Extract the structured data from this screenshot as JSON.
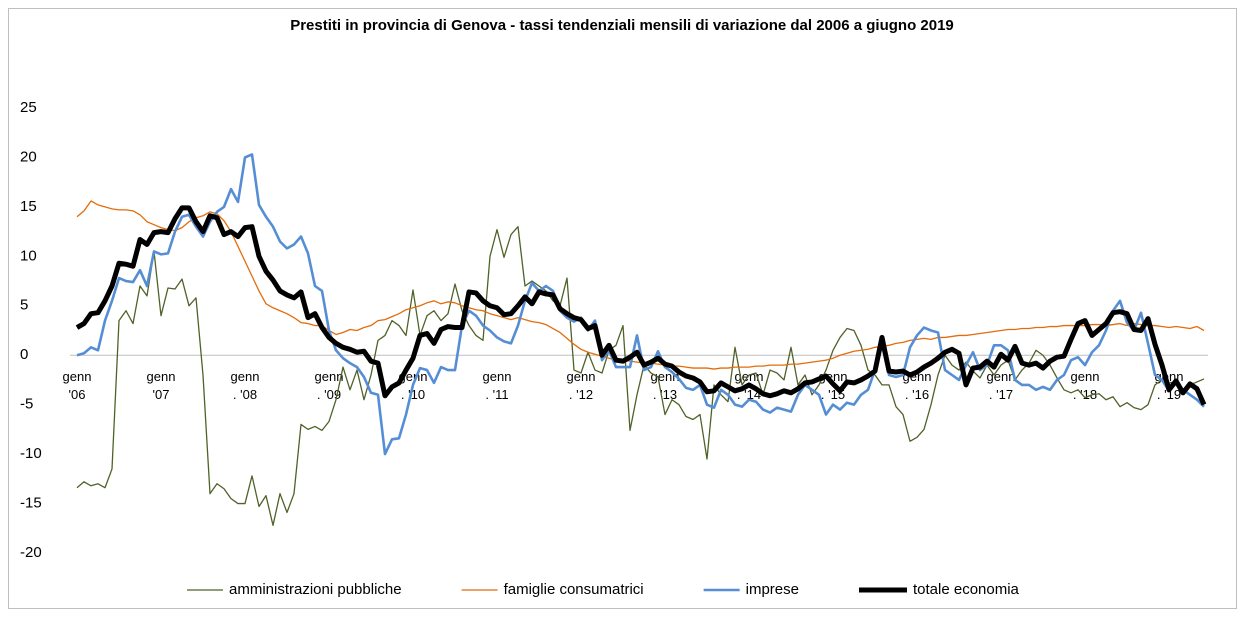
{
  "chart_data": {
    "type": "line",
    "title": "Prestiti in provincia di Genova - tassi tendenziali mensili di variazione  dal 2006 a giugno 2019",
    "categories": [
      "genn\n'06",
      null,
      null,
      null,
      null,
      null,
      null,
      null,
      null,
      null,
      null,
      null,
      "genn\n'07",
      null,
      null,
      null,
      null,
      null,
      null,
      null,
      null,
      null,
      null,
      null,
      "genn\n. '08",
      null,
      null,
      null,
      null,
      null,
      null,
      null,
      null,
      null,
      null,
      null,
      "genn\n. '09",
      null,
      null,
      null,
      null,
      null,
      null,
      null,
      null,
      null,
      null,
      null,
      "genn\n. '10",
      null,
      null,
      null,
      null,
      null,
      null,
      null,
      null,
      null,
      null,
      null,
      "genn\n. '11",
      null,
      null,
      null,
      null,
      null,
      null,
      null,
      null,
      null,
      null,
      null,
      "genn\n. '12",
      null,
      null,
      null,
      null,
      null,
      null,
      null,
      null,
      null,
      null,
      null,
      "genn\n. '13",
      null,
      null,
      null,
      null,
      null,
      null,
      null,
      null,
      null,
      null,
      null,
      "genn\n. '14",
      null,
      null,
      null,
      null,
      null,
      null,
      null,
      null,
      null,
      null,
      null,
      "genn\n. '15",
      null,
      null,
      null,
      null,
      null,
      null,
      null,
      null,
      null,
      null,
      null,
      "genn\n. '16",
      null,
      null,
      null,
      null,
      null,
      null,
      null,
      null,
      null,
      null,
      null,
      "genn\n. '17",
      null,
      null,
      null,
      null,
      null,
      null,
      null,
      null,
      null,
      null,
      null,
      "genn\n. '18",
      null,
      null,
      null,
      null,
      null,
      null,
      null,
      null,
      null,
      null,
      null,
      "genn\n. '19",
      null,
      null,
      null,
      null,
      null
    ],
    "ylim": [
      -20,
      25
    ],
    "yticks": [
      -20,
      -15,
      -10,
      -5,
      0,
      5,
      10,
      15,
      20,
      25
    ],
    "grid": false,
    "legend": "bottom",
    "series": [
      {
        "name": "amministrazioni pubbliche",
        "color": "#4f6228",
        "width": 1.3,
        "values": [
          -13.4,
          -12.8,
          -13.2,
          -13,
          -13.4,
          -11.5,
          3.5,
          4.5,
          3.2,
          7,
          6,
          10.5,
          4,
          6.8,
          6.7,
          7.7,
          5,
          5.8,
          -2,
          -14,
          -13,
          -13.5,
          -14.5,
          -15,
          -15,
          -12.2,
          -15.3,
          -14.2,
          -17.2,
          -14,
          -15.9,
          -14,
          -7,
          -7.5,
          -7.2,
          -7.6,
          -6.7,
          -4.5,
          -1.2,
          -3.5,
          -1.5,
          -4.5,
          -2,
          1.5,
          2,
          3.5,
          3,
          2,
          6.6,
          2,
          4,
          4.5,
          3.5,
          4.2,
          7.2,
          4.5,
          3,
          2,
          1.5,
          10,
          12.7,
          9.9,
          12.2,
          13,
          7,
          7.5,
          7,
          6.5,
          5.5,
          5,
          7.8,
          -1.5,
          -1.8,
          0.3,
          -1.5,
          -1.8,
          0.5,
          1,
          3,
          -7.6,
          -4,
          -1,
          -1.8,
          -2.2,
          -6,
          -4.5,
          -5,
          -6.2,
          -6.5,
          -6,
          -10.5,
          -3,
          -4,
          -4.7,
          0.8,
          -3,
          -2,
          -1.8,
          -4,
          -1.5,
          -1.8,
          -2.5,
          0.8,
          -3,
          -2,
          -4,
          -3,
          -1.5,
          0.5,
          1.8,
          2.7,
          2.5,
          1,
          -1.5,
          -2,
          -3,
          -3,
          -5.2,
          -6,
          -8.7,
          -8.3,
          -7.5,
          -5,
          -2,
          0,
          -1,
          -1.5,
          -0.7,
          -1.6,
          -2.3,
          -1,
          -2,
          -1,
          -0.5,
          -2.5,
          -1.5,
          -0.8,
          0.5,
          0,
          -1,
          -2.3,
          -3.5,
          -3.8,
          -3.5,
          -4.3,
          -4,
          -3.9,
          -4.5,
          -4.2,
          -5.2,
          -4.8,
          -5.3,
          -5.5,
          -5,
          -3,
          -2.5,
          -2.8,
          -2.7,
          -3.5,
          -3,
          -2.7,
          -2.4
        ]
      },
      {
        "name": "famiglie consumatrici",
        "color": "#e46c0a",
        "width": 1.3,
        "values": [
          14,
          14.6,
          15.6,
          15.2,
          15,
          14.8,
          14.7,
          14.7,
          14.6,
          14.2,
          13.5,
          13.2,
          12.9,
          12.7,
          12.6,
          12.9,
          13.5,
          13.9,
          14.1,
          14.5,
          14.3,
          13.6,
          12.5,
          11,
          9.5,
          8,
          6.5,
          5.2,
          4.8,
          4.5,
          4.2,
          3.8,
          3.3,
          3.2,
          3,
          3,
          2.5,
          2.1,
          2.3,
          2.6,
          2.5,
          2.8,
          3,
          3.5,
          3.6,
          3.9,
          4.2,
          4.6,
          4.8,
          5,
          5.3,
          5.5,
          5.2,
          5.4,
          5.3,
          5,
          4.8,
          4.6,
          4.5,
          4.2,
          4,
          3.8,
          3.6,
          3.8,
          3.6,
          3.4,
          3.3,
          3.1,
          2.7,
          2.3,
          1.7,
          1.1,
          0.6,
          0.3,
          0.1,
          -0.1,
          -0.3,
          -0.5,
          -0.5,
          -0.6,
          -0.7,
          -0.8,
          -0.8,
          -0.9,
          -1,
          -1.1,
          -1.1,
          -1.2,
          -1.3,
          -1.3,
          -1.3,
          -1.4,
          -1.3,
          -1.3,
          -1.2,
          -1.2,
          -1.2,
          -1.1,
          -1.1,
          -1,
          -1,
          -1,
          -0.9,
          -0.9,
          -0.8,
          -0.7,
          -0.6,
          -0.5,
          -0.3,
          0,
          0.2,
          0.4,
          0.5,
          0.6,
          0.8,
          0.9,
          1,
          1.2,
          1.3,
          1.5,
          1.6,
          1.7,
          1.6,
          1.8,
          1.8,
          1.9,
          2,
          2,
          2.1,
          2.2,
          2.3,
          2.4,
          2.5,
          2.6,
          2.6,
          2.7,
          2.7,
          2.8,
          2.8,
          2.9,
          2.9,
          3,
          3,
          3,
          3,
          3.1,
          3.1,
          3,
          3.1,
          3.2,
          3,
          3.2,
          3.1,
          3,
          3,
          2.9,
          2.8,
          2.9,
          2.8,
          2.7,
          2.9,
          2.5
        ]
      },
      {
        "name": "imprese",
        "color": "#558ed5",
        "width": 2.6,
        "values": [
          0,
          0.2,
          0.8,
          0.5,
          3.5,
          5.5,
          7.8,
          7.5,
          7.4,
          8.6,
          7,
          10.5,
          10.2,
          10.3,
          12.5,
          14,
          14.2,
          13,
          12,
          13.5,
          14.5,
          15,
          16.8,
          15.5,
          20,
          20.3,
          15.2,
          14,
          13,
          11.5,
          10.8,
          11.2,
          12,
          10.3,
          7,
          6.5,
          2.5,
          0.5,
          -0.3,
          -0.8,
          -1.2,
          -2.2,
          -3.8,
          -4,
          -10,
          -8.5,
          -8.4,
          -6,
          -3,
          -1.3,
          -1.5,
          -2.8,
          -1.2,
          -1.5,
          -1.5,
          3,
          4.5,
          4,
          3,
          2.5,
          1.8,
          1.4,
          1.2,
          3,
          5.5,
          7.3,
          6.5,
          7,
          6.5,
          4.5,
          3.8,
          3.4,
          3.8,
          2.5,
          3.5,
          -0.5,
          0.5,
          -1.2,
          -1.2,
          -1.2,
          2,
          -1.5,
          -1.2,
          0.4,
          -1.2,
          -1.7,
          -2.4,
          -3.3,
          -3.5,
          -3,
          -5,
          -5.3,
          -3.5,
          -4,
          -5,
          -5.2,
          -4.5,
          -4.7,
          -5.5,
          -5.8,
          -5.3,
          -5.5,
          -5.7,
          -4,
          -3,
          -3.5,
          -4,
          -6,
          -5,
          -5.5,
          -4.8,
          -5,
          -4,
          -3.5,
          -1.5,
          1,
          -2,
          -2.2,
          -2,
          0.8,
          2,
          2.8,
          2.5,
          2.3,
          -1.5,
          -2,
          -2.5,
          -1,
          0.3,
          -1.5,
          -1,
          1,
          1,
          0.5,
          -2.5,
          -3,
          -3,
          -3.5,
          -3.2,
          -3.5,
          -2.5,
          -2,
          -0.5,
          -0.2,
          -1,
          0.3,
          1,
          2.5,
          4.5,
          5.5,
          3.3,
          2.5,
          4.3,
          1.2,
          -2,
          -2.5,
          -3.6,
          -2.7,
          -3.5,
          -4,
          -4.5,
          -5.2
        ]
      },
      {
        "name": "totale economia",
        "color": "#000000",
        "width": 5,
        "values": [
          2.8,
          3.2,
          4.2,
          4.3,
          5.5,
          7,
          9.3,
          9.2,
          9,
          11.7,
          11.2,
          12.4,
          12.5,
          12.4,
          13.8,
          14.9,
          14.9,
          13.5,
          12.5,
          14.1,
          13.9,
          12.2,
          12.5,
          12,
          12.9,
          13,
          10,
          8.5,
          7.6,
          6.5,
          6.1,
          5.8,
          6.4,
          3.8,
          4.2,
          2.8,
          1.8,
          1.2,
          0.8,
          0.6,
          0.3,
          0.4,
          -0.6,
          -0.8,
          -4.1,
          -3.2,
          -2.8,
          -1.5,
          -0.3,
          2,
          2.2,
          1.2,
          2.6,
          2.9,
          2.8,
          2.8,
          6.4,
          6.3,
          5.5,
          5,
          4.8,
          4.1,
          4.2,
          5,
          5.9,
          5.2,
          6.4,
          6.2,
          6.1,
          4.7,
          4.2,
          3.8,
          3.6,
          2.7,
          3,
          0,
          1,
          -0.5,
          -0.6,
          -0.2,
          0.3,
          -1,
          -0.7,
          -0.3,
          -0.9,
          -1.1,
          -1.7,
          -2.1,
          -2.3,
          -2.7,
          -3.7,
          -3.6,
          -2.8,
          -3.2,
          -3.6,
          -3.4,
          -3,
          -3.4,
          -3.9,
          -4.1,
          -3.9,
          -3.6,
          -3.8,
          -3.4,
          -2.8,
          -2.7,
          -2.4,
          -2.1,
          -2.9,
          -3.6,
          -2.7,
          -2.8,
          -2.5,
          -2.1,
          -1.6,
          1.8,
          -1.6,
          -1.7,
          -1.6,
          -2,
          -1.7,
          -1.2,
          -0.8,
          -0.3,
          0.3,
          0.6,
          0.2,
          -3,
          -1.3,
          -1.2,
          -0.6,
          -1.2,
          0.1,
          -0.5,
          0.9,
          -0.8,
          -1,
          -0.8,
          -1.3,
          -0.6,
          -0.2,
          -0.1,
          1.6,
          3.2,
          3.5,
          2,
          2.6,
          3.2,
          4.3,
          4.4,
          4.2,
          2.6,
          2.5,
          3.7,
          1.1,
          -1,
          -3.5,
          -2.6,
          -3.8,
          -2.9,
          -3.4,
          -5
        ]
      }
    ]
  }
}
